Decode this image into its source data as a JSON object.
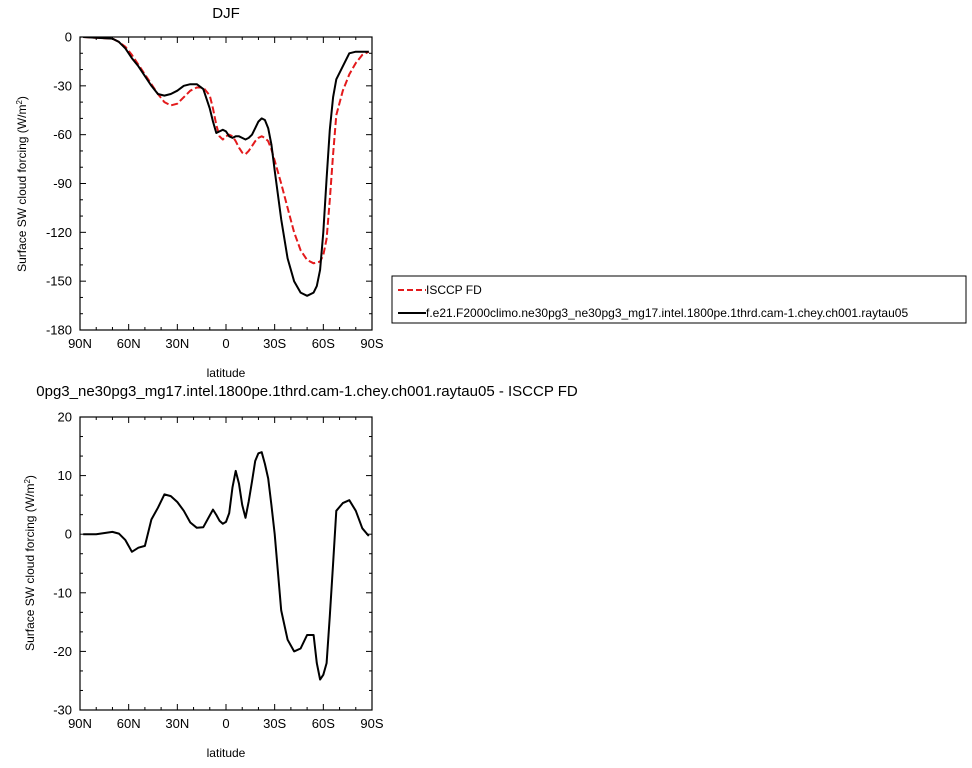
{
  "chart_data": [
    {
      "type": "line",
      "title": "DJF",
      "xlabel": "latitude",
      "ylabel": "Surface SW cloud forcing (W/m",
      "ylabel_sup": "2",
      "ylabel_close": ")",
      "xlim": [
        -90,
        90
      ],
      "ylim": [
        -180,
        0
      ],
      "xticks": [
        -90,
        -60,
        -30,
        0,
        30,
        60,
        90
      ],
      "xticklabels": [
        "90N",
        "60N",
        "30N",
        "0",
        "30S",
        "60S",
        "90S"
      ],
      "yticks": [
        0,
        -30,
        -60,
        -90,
        -120,
        -150,
        -180
      ],
      "yticklabels": [
        "0",
        "-30",
        "-60",
        "-90",
        "-120",
        "-150",
        "-180"
      ],
      "grid": false,
      "legend": "outside-right",
      "series": [
        {
          "name": "ISCCP FD",
          "color": "#e31a1c",
          "dash": "dashed",
          "x": [
            -88,
            -80,
            -70,
            -66,
            -62,
            -58,
            -54,
            -50,
            -46,
            -42,
            -38,
            -34,
            -30,
            -26,
            -22,
            -18,
            -14,
            -10,
            -8,
            -6,
            -4,
            -2,
            0,
            2,
            4,
            6,
            8,
            10,
            12,
            14,
            16,
            18,
            20,
            22,
            24,
            26,
            28,
            30,
            34,
            38,
            42,
            46,
            50,
            54,
            58,
            60,
            62,
            64,
            66,
            68,
            72,
            76,
            80,
            84,
            88
          ],
          "y": [
            0,
            -0.5,
            -1,
            -3,
            -6,
            -11,
            -17,
            -23,
            -29,
            -35,
            -40,
            -42,
            -41,
            -37,
            -33,
            -31,
            -31,
            -36,
            -44,
            -54,
            -61,
            -63,
            -61,
            -60,
            -61,
            -64,
            -68,
            -71,
            -72,
            -70,
            -67,
            -64,
            -62,
            -61,
            -62,
            -64,
            -69,
            -76,
            -90,
            -105,
            -120,
            -131,
            -137,
            -139,
            -138,
            -134,
            -124,
            -100,
            -72,
            -48,
            -33,
            -23,
            -16,
            -11,
            -9
          ]
        },
        {
          "name": "f.e21.F2000climo.ne30pg3_ne30pg3_mg17.intel.1800pe.1thrd.cam-1.chey.ch001.raytau05",
          "color": "#000000",
          "dash": "solid",
          "x": [
            -88,
            -80,
            -70,
            -66,
            -62,
            -58,
            -54,
            -50,
            -46,
            -42,
            -38,
            -34,
            -30,
            -26,
            -22,
            -18,
            -14,
            -10,
            -8,
            -6,
            -4,
            -2,
            0,
            2,
            4,
            6,
            8,
            10,
            12,
            14,
            16,
            18,
            20,
            22,
            24,
            26,
            28,
            30,
            34,
            38,
            42,
            46,
            50,
            54,
            56,
            58,
            60,
            62,
            64,
            66,
            68,
            72,
            76,
            80,
            84,
            88
          ],
          "y": [
            0,
            -0.5,
            -1,
            -3,
            -7,
            -13,
            -18,
            -24,
            -30,
            -35,
            -36,
            -35,
            -33,
            -30,
            -29,
            -29,
            -32,
            -44,
            -52,
            -59,
            -58,
            -57,
            -58,
            -61,
            -62,
            -61,
            -61,
            -62,
            -63,
            -62,
            -60,
            -56,
            -52,
            -50,
            -51,
            -56,
            -66,
            -82,
            -112,
            -136,
            -150,
            -157,
            -159,
            -157,
            -153,
            -143,
            -120,
            -87,
            -57,
            -37,
            -26,
            -18,
            -10,
            -9,
            -9,
            -9
          ]
        }
      ]
    },
    {
      "type": "line",
      "title": "0pg3_ne30pg3_mg17.intel.1800pe.1thrd.cam-1.chey.ch001.raytau05 - ISCCP FD",
      "xlabel": "latitude",
      "ylabel": "Surface SW cloud forcing (W/m",
      "ylabel_sup": "2",
      "ylabel_close": ")",
      "xlim": [
        -90,
        90
      ],
      "ylim": [
        -30,
        20
      ],
      "xticks": [
        -90,
        -60,
        -30,
        0,
        30,
        60,
        90
      ],
      "xticklabels": [
        "90N",
        "60N",
        "30N",
        "0",
        "30S",
        "60S",
        "90S"
      ],
      "yticks": [
        20,
        10,
        0,
        -10,
        -20,
        -30
      ],
      "yticklabels": [
        "20",
        "10",
        "0",
        "-10",
        "-20",
        "-30"
      ],
      "grid": false,
      "series": [
        {
          "color": "#000000",
          "dash": "solid",
          "x": [
            -88,
            -80,
            -70,
            -66,
            -62,
            -58,
            -54,
            -50,
            -46,
            -42,
            -38,
            -34,
            -30,
            -26,
            -22,
            -18,
            -14,
            -10,
            -8,
            -6,
            -4,
            -2,
            0,
            2,
            4,
            6,
            8,
            10,
            12,
            14,
            16,
            18,
            20,
            22,
            24,
            26,
            28,
            30,
            34,
            38,
            42,
            46,
            50,
            54,
            56,
            58,
            60,
            62,
            64,
            66,
            68,
            72,
            76,
            80,
            84,
            88
          ],
          "y": [
            0,
            0,
            0.4,
            0.1,
            -1,
            -3,
            -2.3,
            -2,
            2.5,
            4.5,
            6.8,
            6.5,
            5.5,
            4,
            2,
            1.1,
            1.2,
            3.2,
            4.2,
            3.3,
            2.3,
            1.8,
            2.1,
            3.6,
            8,
            10.8,
            8.6,
            5,
            2.8,
            5.6,
            9,
            12.5,
            13.8,
            14,
            12,
            9.5,
            5,
            0,
            -13,
            -18,
            -20,
            -19.5,
            -17.2,
            -17.2,
            -22,
            -24.8,
            -24,
            -22,
            -14,
            -5,
            4,
            5.3,
            5.8,
            4,
            1,
            -0.3
          ]
        }
      ]
    }
  ]
}
